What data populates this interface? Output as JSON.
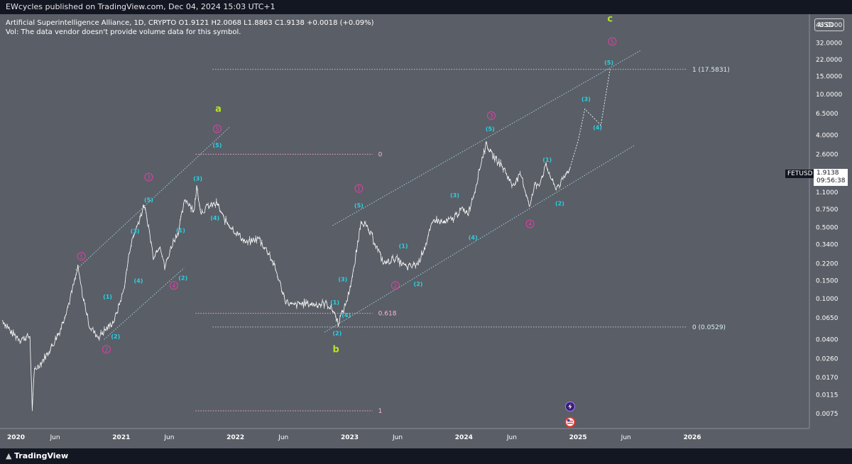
{
  "header": {
    "publisher": "EWcycles published on TradingView.com, Dec 04, 2024 15:03 UTC+1",
    "symbol_line": "Artificial Superintelligence Alliance, 1D, CRYPTO  O1.9121  H2.0068  L1.8863  C1.9138  +0.0018 (+0.09%)",
    "vol_line": "Vol: The data vendor doesn't provide volume data for this symbol."
  },
  "currency_button": "USD",
  "symbol_tag": "FETUSD",
  "price_tag": {
    "price": "1.9138",
    "countdown": "09:56:38"
  },
  "footer": {
    "logo_icon": "tradingview-logo-icon",
    "logo_text": "TradingView"
  },
  "colors": {
    "background": "#5a5e66",
    "frame": "#131722",
    "wave_minor": "#27d3e6",
    "wave_major": "#e040a8",
    "wave_abc": "#b4e61e",
    "fib": "#ffb4d8",
    "channel": "#9ecfe0"
  },
  "chart_data": {
    "type": "line",
    "scale": "log",
    "title": "",
    "xlabel": "",
    "ylabel": "",
    "ylim": [
      0.005,
      55
    ],
    "yticks": [
      {
        "label": "48.0000",
        "value": 48
      },
      {
        "label": "32.0000",
        "value": 32
      },
      {
        "label": "22.0000",
        "value": 22
      },
      {
        "label": "15.0000",
        "value": 15
      },
      {
        "label": "10.0000",
        "value": 10
      },
      {
        "label": "6.5000",
        "value": 6.5
      },
      {
        "label": "4.0000",
        "value": 4
      },
      {
        "label": "2.6000",
        "value": 2.6
      },
      {
        "label": "1.9138",
        "value": 1.9138,
        "hidden": true
      },
      {
        "label": "1.1000",
        "value": 1.1
      },
      {
        "label": "0.7500",
        "value": 0.75
      },
      {
        "label": "0.5000",
        "value": 0.5
      },
      {
        "label": "0.3400",
        "value": 0.34
      },
      {
        "label": "0.2200",
        "value": 0.22
      },
      {
        "label": "0.1500",
        "value": 0.15
      },
      {
        "label": "0.1000",
        "value": 0.1
      },
      {
        "label": "0.0650",
        "value": 0.065
      },
      {
        "label": "0.0400",
        "value": 0.04
      },
      {
        "label": "0.0260",
        "value": 0.026
      },
      {
        "label": "0.0170",
        "value": 0.017
      },
      {
        "label": "0.0115",
        "value": 0.0115
      },
      {
        "label": "0.0075",
        "value": 0.0075
      }
    ],
    "xticks": [
      {
        "label": "2020",
        "t": 2020.0
      },
      {
        "label": "Jun",
        "t": 2020.42
      },
      {
        "label": "2021",
        "t": 2021.0
      },
      {
        "label": "Jun",
        "t": 2021.42
      },
      {
        "label": "2022",
        "t": 2022.0
      },
      {
        "label": "Jun",
        "t": 2022.42
      },
      {
        "label": "2023",
        "t": 2023.0
      },
      {
        "label": "Jun",
        "t": 2023.42
      },
      {
        "label": "2024",
        "t": 2024.0
      },
      {
        "label": "Jun",
        "t": 2024.42
      },
      {
        "label": "2025",
        "t": 2025.0
      },
      {
        "label": "Jun",
        "t": 2025.42
      },
      {
        "label": "2026",
        "t": 2026.0
      }
    ],
    "price_series": {
      "name": "FETUSD",
      "t": [
        2019.96,
        2020.04,
        2020.12,
        2020.2,
        2020.22,
        2020.24,
        2020.3,
        2020.38,
        2020.46,
        2020.54,
        2020.62,
        2020.66,
        2020.72,
        2020.76,
        2020.8,
        2020.88,
        2020.94,
        2021.02,
        2021.08,
        2021.14,
        2021.2,
        2021.24,
        2021.28,
        2021.34,
        2021.38,
        2021.44,
        2021.5,
        2021.56,
        2021.64,
        2021.66,
        2021.7,
        2021.76,
        2021.84,
        2021.9,
        2022.0,
        2022.1,
        2022.2,
        2022.3,
        2022.36,
        2022.44,
        2022.5,
        2022.58,
        2022.7,
        2022.8,
        2022.86,
        2022.9,
        2022.94,
        2022.98,
        2023.04,
        2023.1,
        2023.2,
        2023.3,
        2023.4,
        2023.5,
        2023.6,
        2023.66,
        2023.74,
        2023.82,
        2023.9,
        2023.98,
        2024.04,
        2024.1,
        2024.16,
        2024.2,
        2024.24,
        2024.3,
        2024.36,
        2024.42,
        2024.5,
        2024.58,
        2024.62,
        2024.66,
        2024.72,
        2024.8,
        2024.86,
        2024.93
      ],
      "close": [
        0.062,
        0.046,
        0.04,
        0.043,
        0.0085,
        0.02,
        0.024,
        0.032,
        0.048,
        0.09,
        0.2,
        0.11,
        0.055,
        0.047,
        0.042,
        0.052,
        0.062,
        0.12,
        0.33,
        0.52,
        0.82,
        0.5,
        0.26,
        0.34,
        0.2,
        0.33,
        0.46,
        0.95,
        0.73,
        1.24,
        0.7,
        0.8,
        0.85,
        0.6,
        0.45,
        0.35,
        0.39,
        0.27,
        0.18,
        0.095,
        0.085,
        0.09,
        0.088,
        0.09,
        0.075,
        0.058,
        0.075,
        0.1,
        0.2,
        0.6,
        0.4,
        0.22,
        0.25,
        0.2,
        0.22,
        0.33,
        0.6,
        0.55,
        0.6,
        0.75,
        0.7,
        1.2,
        2.4,
        3.3,
        2.6,
        2.2,
        1.8,
        1.3,
        1.6,
        0.8,
        1.3,
        1.35,
        2.0,
        1.2,
        1.4,
        1.9138
      ]
    },
    "projection": {
      "t": [
        2024.93,
        2025.0,
        2025.06,
        2025.2,
        2025.28
      ],
      "price": [
        1.9138,
        3.5,
        7.2,
        5.0,
        17.58
      ]
    },
    "fib_levels": [
      {
        "label": "0",
        "value": 2.6,
        "t_start": 2021.65,
        "t_end": 2023.2
      },
      {
        "label": "0.618",
        "value": 0.072,
        "t_start": 2021.65,
        "t_end": 2023.2
      },
      {
        "label": "1",
        "value": 0.008,
        "t_start": 2021.65,
        "t_end": 2023.2
      },
      {
        "label": "1 (17.5831)",
        "value": 17.5831,
        "t_start": 2021.8,
        "t_end": 2025.95
      },
      {
        "label": "0 (0.0529)",
        "value": 0.0529,
        "t_start": 2021.8,
        "t_end": 2025.95
      }
    ],
    "channels": [
      {
        "name": "",
        "points": [
          [
            2020.6,
            0.19
          ],
          [
            2021.95,
            4.8
          ]
        ]
      },
      {
        "name": "",
        "points": [
          [
            2020.85,
            0.04
          ],
          [
            2021.55,
            0.2
          ]
        ]
      },
      {
        "name": "",
        "points": [
          [
            2022.85,
            0.52
          ],
          [
            2025.55,
            27.0
          ]
        ]
      },
      {
        "name": "",
        "points": [
          [
            2022.78,
            0.047
          ],
          [
            2025.5,
            3.2
          ]
        ]
      }
    ],
    "annotations": [
      {
        "text": "1",
        "t": 2020.65,
        "price": 0.26,
        "style": "major"
      },
      {
        "text": "2",
        "t": 2020.87,
        "price": 0.032,
        "style": "major"
      },
      {
        "text": "3",
        "t": 2021.24,
        "price": 1.55,
        "style": "major"
      },
      {
        "text": "4",
        "t": 2021.46,
        "price": 0.135,
        "style": "major"
      },
      {
        "text": "5",
        "t": 2021.84,
        "price": 4.6,
        "style": "major"
      },
      {
        "text": "1",
        "t": 2023.08,
        "price": 1.2,
        "style": "major"
      },
      {
        "text": "2",
        "t": 2023.4,
        "price": 0.135,
        "style": "major"
      },
      {
        "text": "3",
        "t": 2024.24,
        "price": 6.2,
        "style": "major"
      },
      {
        "text": "4",
        "t": 2024.58,
        "price": 0.54,
        "style": "major"
      },
      {
        "text": "5",
        "t": 2025.3,
        "price": 33.0,
        "style": "major"
      },
      {
        "text": "(1)",
        "t": 2020.88,
        "price": 0.105,
        "style": "minor"
      },
      {
        "text": "(2)",
        "t": 2020.95,
        "price": 0.043,
        "style": "minor"
      },
      {
        "text": "(3)",
        "t": 2021.12,
        "price": 0.46,
        "style": "minor"
      },
      {
        "text": "(4)",
        "t": 2021.15,
        "price": 0.15,
        "style": "minor"
      },
      {
        "text": "(5)",
        "t": 2021.24,
        "price": 0.93,
        "style": "minor"
      },
      {
        "text": "(1)",
        "t": 2021.52,
        "price": 0.47,
        "style": "minor"
      },
      {
        "text": "(2)",
        "t": 2021.54,
        "price": 0.16,
        "style": "minor"
      },
      {
        "text": "(3)",
        "t": 2021.67,
        "price": 1.5,
        "style": "minor"
      },
      {
        "text": "(4)",
        "t": 2021.82,
        "price": 0.62,
        "style": "minor"
      },
      {
        "text": "(5)",
        "t": 2021.84,
        "price": 3.2,
        "style": "minor"
      },
      {
        "text": "(1)",
        "t": 2022.87,
        "price": 0.092,
        "style": "minor"
      },
      {
        "text": "(2)",
        "t": 2022.89,
        "price": 0.046,
        "style": "minor"
      },
      {
        "text": "(3)",
        "t": 2022.94,
        "price": 0.155,
        "style": "minor"
      },
      {
        "text": "(4)",
        "t": 2022.97,
        "price": 0.069,
        "style": "minor"
      },
      {
        "text": "(5)",
        "t": 2023.08,
        "price": 0.82,
        "style": "minor"
      },
      {
        "text": "(1)",
        "t": 2023.47,
        "price": 0.33,
        "style": "minor"
      },
      {
        "text": "(2)",
        "t": 2023.6,
        "price": 0.14,
        "style": "minor"
      },
      {
        "text": "(3)",
        "t": 2023.92,
        "price": 1.03,
        "style": "minor"
      },
      {
        "text": "(4)",
        "t": 2024.08,
        "price": 0.4,
        "style": "minor"
      },
      {
        "text": "(5)",
        "t": 2024.23,
        "price": 4.6,
        "style": "minor"
      },
      {
        "text": "(1)",
        "t": 2024.73,
        "price": 2.3,
        "style": "minor"
      },
      {
        "text": "(2)",
        "t": 2024.84,
        "price": 0.86,
        "style": "minor"
      },
      {
        "text": "(3)",
        "t": 2025.07,
        "price": 9.0,
        "style": "minor"
      },
      {
        "text": "(4)",
        "t": 2025.17,
        "price": 4.75,
        "style": "minor"
      },
      {
        "text": "(5)",
        "t": 2025.27,
        "price": 20.5,
        "style": "minor"
      },
      {
        "text": "a",
        "t": 2021.85,
        "price": 7.2,
        "style": "abc"
      },
      {
        "text": "b",
        "t": 2022.88,
        "price": 0.0318,
        "style": "abc"
      },
      {
        "text": "c",
        "t": 2025.28,
        "price": 55.0,
        "style": "abc"
      }
    ],
    "event_icons": [
      {
        "name": "flash-event-icon",
        "t": 2024.93,
        "price": 0.0088
      },
      {
        "name": "us-flag-event-icon",
        "t": 2024.93,
        "price": 0.0062
      }
    ],
    "grid": false,
    "legend": "none"
  }
}
